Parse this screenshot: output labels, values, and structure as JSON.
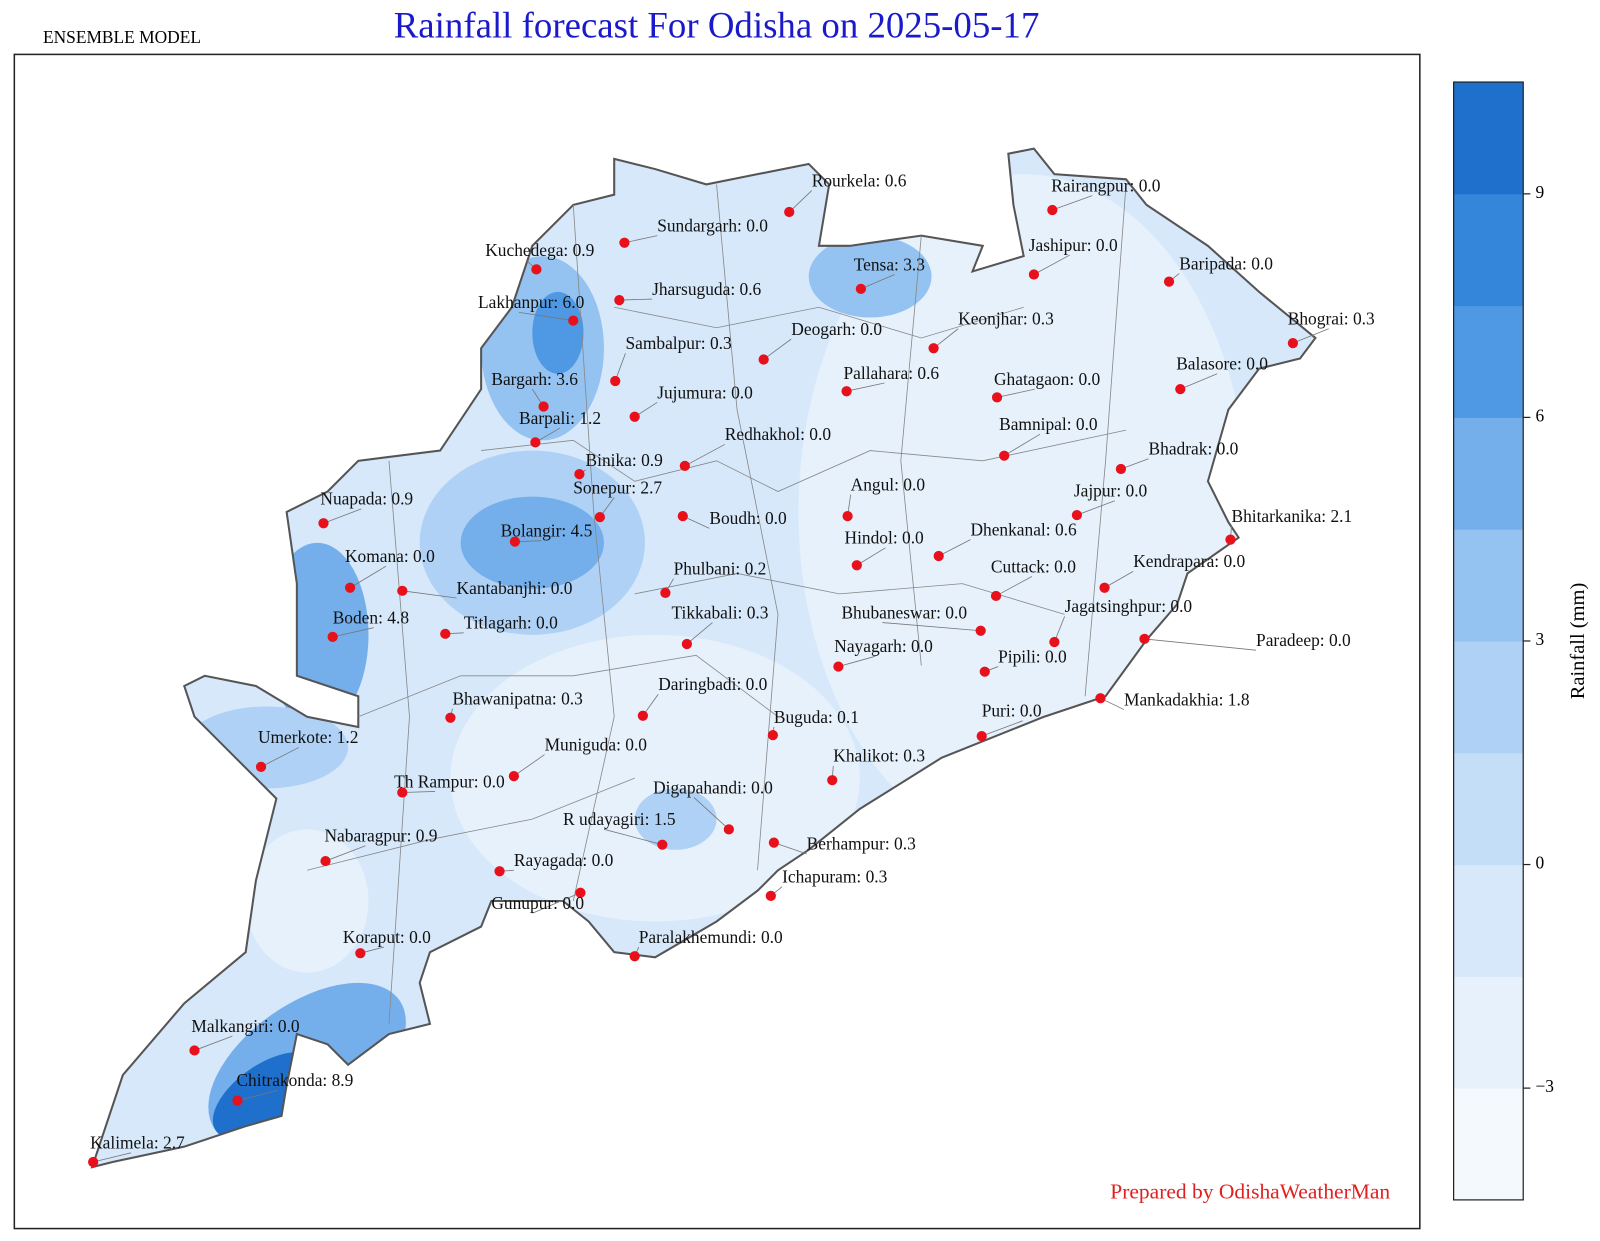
{
  "title": "Rainfall forecast For Odisha on 2025-05-17",
  "subtitle": "ENSEMBLE MODEL",
  "credit": "Prepared by OdishaWeatherMan",
  "colorbar": {
    "label": "Rainfall (mm)",
    "lim": [
      -4.5,
      10.5
    ],
    "ticks": [
      {
        "value": -3,
        "label": "−3"
      },
      0,
      3,
      6,
      9
    ],
    "colors": [
      "#f4f9fe",
      "#e6f1fc",
      "#d6e8fa",
      "#c4def8",
      "#aed1f5",
      "#94c2f1",
      "#74afeb",
      "#4f98e3",
      "#3486db",
      "#1f6fcc"
    ]
  },
  "stations": [
    "Rourkela: 0.6",
    "Sundargarh: 0.0",
    "Kuchedega: 0.9",
    "Rairangpur: 0.0",
    "Jashipur: 0.0",
    "Baripada: 0.0",
    "Tensa: 3.3",
    "Jharsuguda: 0.6",
    "Lakhanpur: 6.0",
    "Keonjhar: 0.3",
    "Bhograi: 0.3",
    "Deogarh: 0.0",
    "Sambalpur: 0.3",
    "Pallahara: 0.6",
    "Ghatagaon: 0.0",
    "Balasore: 0.0",
    "Bargarh: 3.6",
    "Jujumura: 0.0",
    "Barpali: 1.2",
    "Bamnipal: 0.0",
    "Redhakhol: 0.0",
    "Bhadrak: 0.0",
    "Binika: 0.9",
    "Angul: 0.0",
    "Sonepur: 2.7",
    "Jajpur: 0.0",
    "Nuapada: 0.9",
    "Boudh: 0.0",
    "Bhitarkanika: 2.1",
    "Bolangir: 4.5",
    "Dhenkanal: 0.6",
    "Hindol: 0.0",
    "Komana: 0.0",
    "Kendrapara: 0.0",
    "Cuttack: 0.0",
    "Phulbani: 0.2",
    "Kantabanjhi: 0.0",
    "Jagatsinghpur: 0.0",
    "Boden: 4.8",
    "Titlagarh: 0.0",
    "Tikkabali: 0.3",
    "Bhubaneswar: 0.0",
    "Paradeep: 0.0",
    "Nayagarh: 0.0",
    "Pipili: 0.0",
    "Daringbadi: 0.0",
    "Mankadakhia: 1.8",
    "Bhawanipatna: 0.3",
    "Puri: 0.0",
    "Buguda: 0.1",
    "Umerkote: 1.2",
    "Muniguda: 0.0",
    "Khalikot: 0.3",
    "Th Rampur: 0.0",
    "Digapahandi: 0.0",
    "R udayagiri: 1.5",
    "Berhampur: 0.3",
    "Nabaragpur: 0.9",
    "Rayagada: 0.0",
    "Ichapuram: 0.3",
    "Gunupur: 0.0",
    "Koraput: 0.0",
    "Paralakhemundi: 0.0",
    "Malkangiri: 0.0",
    "Chitrakonda: 8.9",
    "Kalimela: 2.7"
  ]
}
